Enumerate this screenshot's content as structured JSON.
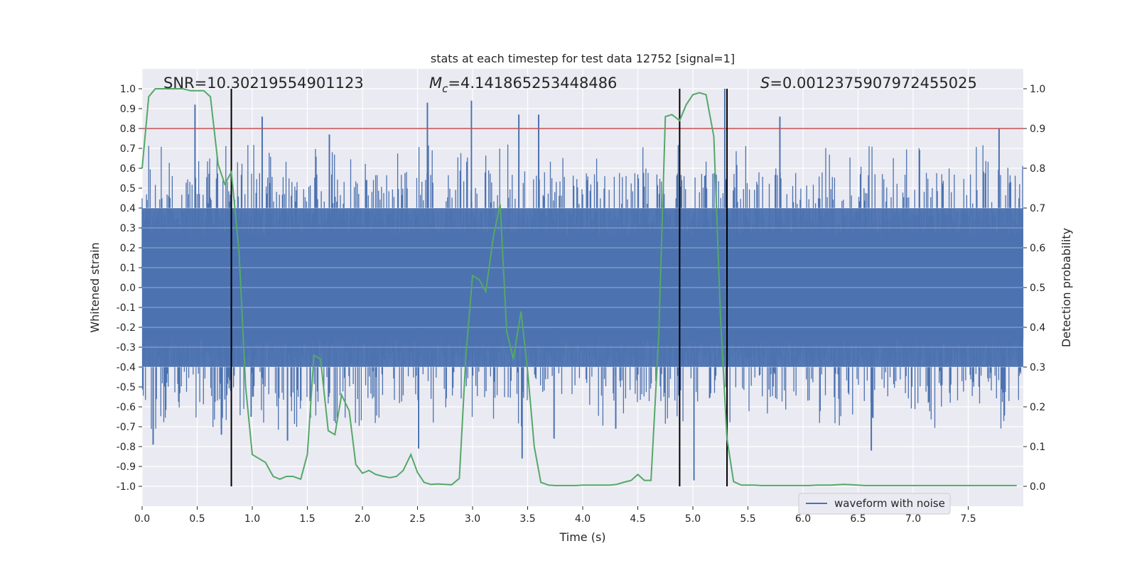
{
  "chart_data": {
    "type": "line",
    "title": "stats at each timestep for test data 12752 [signal=1]",
    "xlabel": "Time (s)",
    "ylabel": "Whitened strain",
    "y2label": "Detection probability",
    "xlim": [
      0.0,
      8.0
    ],
    "ylim": [
      -1.1,
      1.1
    ],
    "y2lim": [
      -0.05,
      1.05
    ],
    "x_ticks": [
      "0.0",
      "0.5",
      "1.0",
      "1.5",
      "2.0",
      "2.5",
      "3.0",
      "3.5",
      "4.0",
      "4.5",
      "5.0",
      "5.5",
      "6.0",
      "6.5",
      "7.0",
      "7.5"
    ],
    "x_tick_values": [
      0.0,
      0.5,
      1.0,
      1.5,
      2.0,
      2.5,
      3.0,
      3.5,
      4.0,
      4.5,
      5.0,
      5.5,
      6.0,
      6.5,
      7.0,
      7.5
    ],
    "y_ticks": [
      "-1.0",
      "-0.9",
      "-0.8",
      "-0.7",
      "-0.6",
      "-0.5",
      "-0.4",
      "-0.3",
      "-0.2",
      "-0.1",
      "0.0",
      "0.1",
      "0.2",
      "0.3",
      "0.4",
      "0.5",
      "0.6",
      "0.7",
      "0.8",
      "0.9",
      "1.0"
    ],
    "y_tick_values": [
      -1.0,
      -0.9,
      -0.8,
      -0.7,
      -0.6,
      -0.5,
      -0.4,
      -0.3,
      -0.2,
      -0.1,
      0.0,
      0.1,
      0.2,
      0.3,
      0.4,
      0.5,
      0.6,
      0.7,
      0.8,
      0.9,
      1.0
    ],
    "y2_ticks": [
      "0.0",
      "0.1",
      "0.2",
      "0.3",
      "0.4",
      "0.5",
      "0.6",
      "0.7",
      "0.8",
      "0.9",
      "1.0"
    ],
    "y2_tick_values": [
      0.0,
      0.1,
      0.2,
      0.3,
      0.4,
      0.5,
      0.6,
      0.7,
      0.8,
      0.9,
      1.0
    ],
    "annotations": {
      "snr_text": "SNR=10.30219554901123",
      "mc_symbol": "M",
      "mc_sub": "c",
      "mc_value": "=4.141865253448486",
      "s_symbol": "S",
      "s_value": "=0.0012375907972455025"
    },
    "threshold": {
      "value": 0.9,
      "axis": "y2",
      "color": "#c44e52"
    },
    "vertical_markers": [
      0.81,
      4.88,
      5.31
    ],
    "waveform": {
      "name": "waveform with noise",
      "color": "#4c72b0",
      "core_amplitude": 0.4,
      "spike_peaks": [
        [
          0.1,
          -0.79
        ],
        [
          0.48,
          0.92
        ],
        [
          0.72,
          -0.74
        ],
        [
          0.99,
          -0.65
        ],
        [
          1.09,
          0.86
        ],
        [
          1.32,
          -0.77
        ],
        [
          1.7,
          0.77
        ],
        [
          2.59,
          0.93
        ],
        [
          2.51,
          -0.81
        ],
        [
          2.99,
          0.94
        ],
        [
          3.42,
          0.87
        ],
        [
          3.45,
          -0.86
        ],
        [
          3.6,
          0.87
        ],
        [
          3.74,
          -0.76
        ],
        [
          4.3,
          -0.71
        ],
        [
          5.01,
          -0.97
        ],
        [
          5.29,
          1.0
        ],
        [
          5.79,
          0.86
        ],
        [
          6.62,
          -0.82
        ],
        [
          7.78,
          0.8
        ]
      ]
    },
    "series": [
      {
        "name": "detection probability",
        "axis": "y2",
        "color": "#55a868",
        "x": [
          0.0,
          0.06,
          0.12,
          0.19,
          0.25,
          0.31,
          0.37,
          0.44,
          0.5,
          0.56,
          0.62,
          0.69,
          0.75,
          0.81,
          0.88,
          0.94,
          1.0,
          1.06,
          1.12,
          1.19,
          1.25,
          1.31,
          1.37,
          1.44,
          1.5,
          1.56,
          1.62,
          1.69,
          1.75,
          1.81,
          1.88,
          1.94,
          2.0,
          2.06,
          2.12,
          2.19,
          2.25,
          2.31,
          2.37,
          2.44,
          2.5,
          2.56,
          2.62,
          2.69,
          2.75,
          2.81,
          2.88,
          2.94,
          3.0,
          3.06,
          3.12,
          3.19,
          3.25,
          3.31,
          3.37,
          3.44,
          3.5,
          3.56,
          3.62,
          3.69,
          3.75,
          3.81,
          3.88,
          3.94,
          4.0,
          4.06,
          4.12,
          4.19,
          4.25,
          4.31,
          4.37,
          4.44,
          4.5,
          4.56,
          4.62,
          4.69,
          4.75,
          4.81,
          4.88,
          4.94,
          5.0,
          5.06,
          5.12,
          5.19,
          5.25,
          5.31,
          5.37,
          5.44,
          5.5,
          5.56,
          5.62,
          5.69,
          5.75,
          5.81,
          5.88,
          5.94,
          6.0,
          6.06,
          6.12,
          6.19,
          6.25,
          6.31,
          6.37,
          6.44,
          6.5,
          6.56,
          6.62,
          6.69,
          6.75,
          6.81,
          6.88,
          6.94,
          7.0,
          7.06,
          7.12,
          7.19,
          7.25,
          7.31,
          7.37,
          7.44,
          7.5,
          7.56,
          7.62,
          7.69,
          7.75,
          7.81,
          7.88,
          7.94
        ],
        "y": [
          0.8,
          0.98,
          1.0,
          1.0,
          1.0,
          1.0,
          1.0,
          0.995,
          0.995,
          0.995,
          0.98,
          0.81,
          0.76,
          0.79,
          0.59,
          0.25,
          0.08,
          0.07,
          0.06,
          0.025,
          0.018,
          0.025,
          0.025,
          0.018,
          0.08,
          0.33,
          0.32,
          0.14,
          0.13,
          0.23,
          0.19,
          0.055,
          0.033,
          0.04,
          0.03,
          0.025,
          0.022,
          0.025,
          0.04,
          0.08,
          0.035,
          0.01,
          0.005,
          0.006,
          0.005,
          0.004,
          0.02,
          0.33,
          0.53,
          0.52,
          0.49,
          0.63,
          0.71,
          0.39,
          0.32,
          0.44,
          0.29,
          0.1,
          0.01,
          0.003,
          0.002,
          0.002,
          0.002,
          0.002,
          0.003,
          0.003,
          0.003,
          0.003,
          0.003,
          0.005,
          0.01,
          0.015,
          0.03,
          0.015,
          0.015,
          0.38,
          0.93,
          0.935,
          0.92,
          0.96,
          0.985,
          0.99,
          0.985,
          0.88,
          0.43,
          0.12,
          0.012,
          0.003,
          0.003,
          0.003,
          0.002,
          0.002,
          0.002,
          0.002,
          0.002,
          0.002,
          0.002,
          0.002,
          0.003,
          0.003,
          0.003,
          0.004,
          0.005,
          0.004,
          0.003,
          0.002,
          0.002,
          0.002,
          0.002,
          0.002,
          0.002,
          0.002,
          0.002,
          0.002,
          0.002,
          0.002,
          0.002,
          0.002,
          0.002,
          0.002,
          0.002,
          0.002,
          0.002,
          0.002,
          0.002,
          0.002,
          0.002,
          0.002
        ]
      }
    ],
    "legend": {
      "labels": [
        "waveform with noise"
      ],
      "placement": "lower-right"
    },
    "grid": true
  }
}
